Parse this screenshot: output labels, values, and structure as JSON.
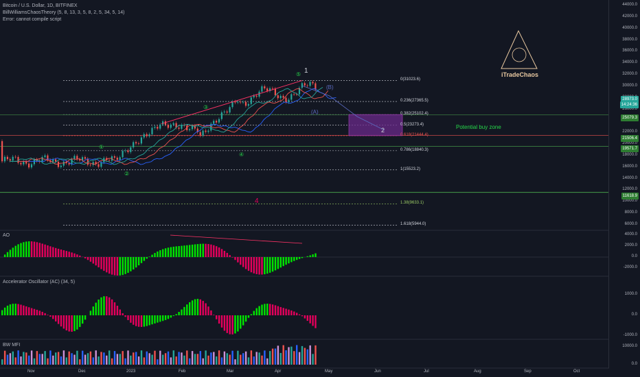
{
  "header": {
    "symbol": "Bitcoin / U.S. Dollar, 1D, BITFINEX",
    "indicator": "BillWilliamsChaosTheory (5, 8, 13, 3, 5, 8, 2, 5, 34, 5, 14)",
    "error": "Error: cannot compile script"
  },
  "branding": {
    "name": "iTradeChaos"
  },
  "price_axis": [
    "44000.0",
    "42000.0",
    "40000.0",
    "38000.0",
    "36000.0",
    "34000.0",
    "32000.0",
    "30000.0",
    "28000.0",
    "26000.0",
    "24000.0",
    "22000.0",
    "20000.0",
    "18000.0",
    "16000.0",
    "14000.0",
    "12000.0",
    "10000.0",
    "8000.0",
    "6000.0"
  ],
  "price_tags": [
    {
      "text": "28973.0",
      "color": "#26a69a"
    },
    {
      "text": "14:24:36",
      "color": "#26a69a"
    },
    {
      "text": "25079.3",
      "color": "#2e7d32"
    },
    {
      "text": "21506.4",
      "color": "#2e7d32"
    },
    {
      "text": "19571.7",
      "color": "#2e7d32"
    },
    {
      "text": "11618.9",
      "color": "#2e7d32"
    }
  ],
  "fib_levels": [
    {
      "label": "0(31023.6)",
      "color": "#d1d4dc"
    },
    {
      "label": "0.236(27365.5)",
      "color": "#d1d4dc"
    },
    {
      "label": "0.382(25102.4)",
      "color": "#d1d4dc"
    },
    {
      "label": "0.5(23273.4)",
      "color": "#d1d4dc"
    },
    {
      "label": "0.618(21444.4)",
      "color": "#ef5350"
    },
    {
      "label": "0.786(18840.3)",
      "color": "#d1d4dc"
    },
    {
      "label": "1(15523.2)",
      "color": "#d1d4dc"
    },
    {
      "label": "1.38(9633.1)",
      "color": "#9ccc65"
    },
    {
      "label": "1.618(5944.0)",
      "color": "#d1d4dc"
    }
  ],
  "wave_labels": {
    "wave1": "1",
    "wave2": "2",
    "waveA": "(A)",
    "waveB": "(B)",
    "wave4": "4",
    "c1": "①",
    "c2": "②",
    "c3": "③",
    "c4": "④",
    "c5": "⑤"
  },
  "zone_label": "Potential buy zone",
  "panes": {
    "ao": {
      "title": "AO",
      "ticks": [
        "4000.0",
        "2000.0",
        "0.0",
        "-2000.0"
      ]
    },
    "ac": {
      "title": "Accelerator Oscillator (AC) (34, 5)",
      "ticks": [
        "1000.0",
        "0.0",
        "-1000.0"
      ]
    },
    "mfi": {
      "title": "BW MFI",
      "ticks": [
        "10000.0",
        "0.0"
      ]
    }
  },
  "time_axis": [
    "Nov",
    "Dec",
    "2023",
    "Feb",
    "Mar",
    "Apr",
    "May",
    "Jun",
    "Jul",
    "Aug",
    "Sep",
    "Oct"
  ],
  "colors": {
    "up": "#26a69a",
    "down": "#ef5350",
    "ao_up": "#00e600",
    "ao_down": "#e6005c",
    "zone": "#6a2a8a",
    "accent": "#2962ff"
  }
}
